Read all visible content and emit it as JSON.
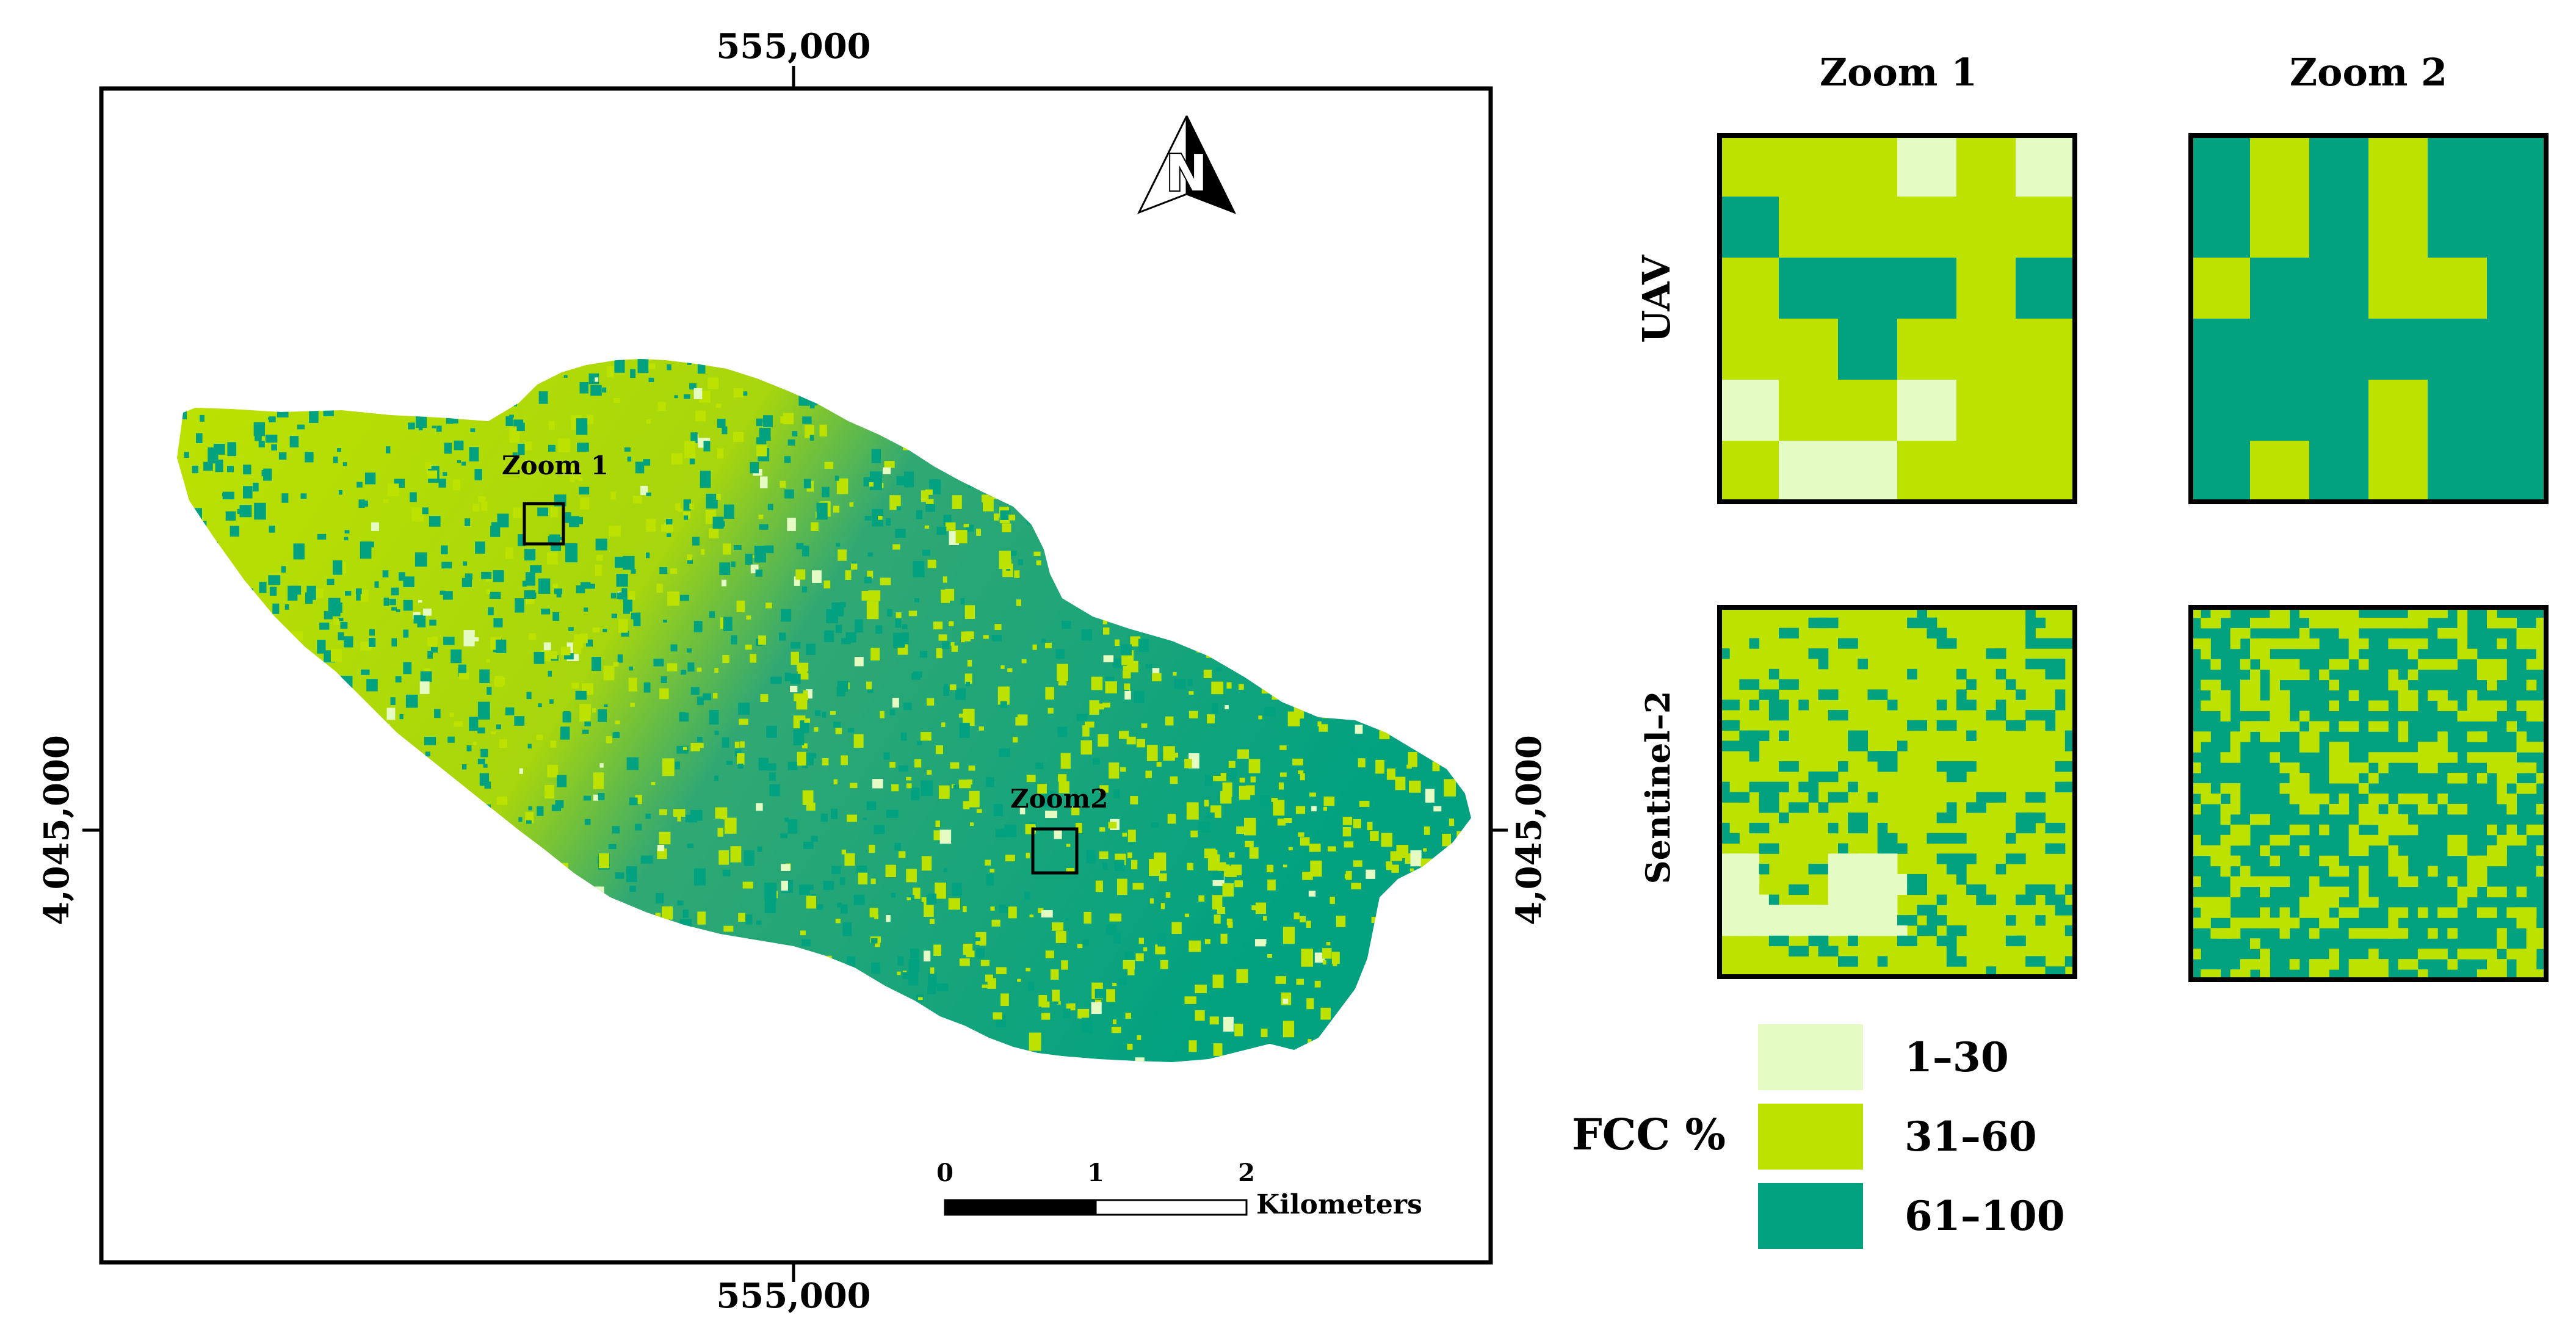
{
  "colors": {
    "low": "#e4fbc4",
    "mid": "#bde200",
    "high": "#02a281",
    "frame": "#000000",
    "background": "#ffffff"
  },
  "map": {
    "coord_top": "555,000",
    "coord_bottom": "555,000",
    "coord_left": "4,045,000",
    "coord_right": "4,045,000",
    "zoom1_label": "Zoom 1",
    "zoom2_label": "Zoom2",
    "north_letter": "N",
    "scale": {
      "tick0": "0",
      "tick1": "1",
      "tick2": "2",
      "unit": "Kilometers"
    }
  },
  "panels": {
    "col1_title": "Zoom 1",
    "col2_title": "Zoom 2",
    "row1_label": "UAV",
    "row2_label": "Sentinel–2",
    "uav_zoom1_grid": [
      [
        2,
        2,
        2,
        1,
        2,
        1
      ],
      [
        3,
        2,
        2,
        2,
        2,
        2
      ],
      [
        2,
        3,
        3,
        3,
        2,
        3
      ],
      [
        2,
        2,
        3,
        2,
        2,
        2
      ],
      [
        1,
        2,
        2,
        1,
        2,
        2
      ],
      [
        2,
        1,
        1,
        2,
        2,
        2
      ]
    ],
    "uav_zoom2_grid": [
      [
        3,
        2,
        3,
        2,
        3,
        3
      ],
      [
        3,
        2,
        3,
        2,
        3,
        3
      ],
      [
        2,
        3,
        3,
        2,
        2,
        3
      ],
      [
        3,
        3,
        3,
        3,
        3,
        3
      ],
      [
        3,
        3,
        3,
        2,
        3,
        3
      ],
      [
        3,
        2,
        3,
        2,
        3,
        3
      ]
    ]
  },
  "legend": {
    "title": "FCC %",
    "items": [
      {
        "label": "1–30",
        "color": "#e4fbc4"
      },
      {
        "label": "31–60",
        "color": "#bde200"
      },
      {
        "label": "61–100",
        "color": "#02a281"
      }
    ]
  }
}
